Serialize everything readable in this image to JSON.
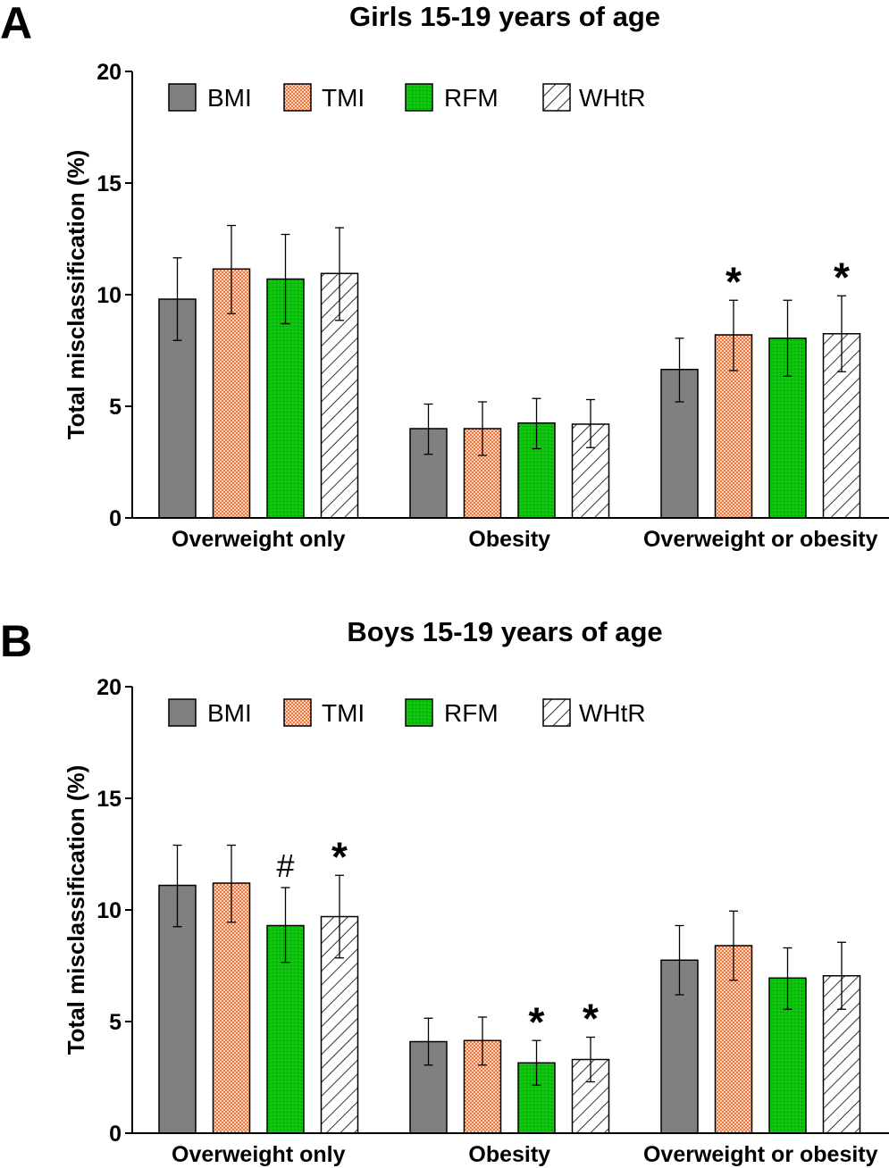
{
  "chart_data": [
    {
      "panel_label": "A",
      "type": "bar",
      "title": "Girls 15-19 years of age",
      "xlabel": "",
      "ylabel": "Total misclassification (%)",
      "ylim": [
        0,
        20
      ],
      "yticks": [
        0,
        5,
        10,
        15,
        20
      ],
      "categories": [
        "Overweight only",
        "Obesity",
        "Overweight or obesity"
      ],
      "legend_position": "top",
      "grid": false,
      "series": [
        {
          "name": "BMI",
          "pattern": "solid-gray",
          "color": "#808080",
          "values": [
            9.8,
            4.0,
            6.65
          ],
          "err_low": [
            7.95,
            2.85,
            5.2
          ],
          "err_high": [
            11.65,
            5.1,
            8.05
          ]
        },
        {
          "name": "TMI",
          "pattern": "orange-checker",
          "color": "#f07840",
          "values": [
            11.15,
            4.0,
            8.2
          ],
          "err_low": [
            9.15,
            2.8,
            6.6
          ],
          "err_high": [
            13.1,
            5.2,
            9.75
          ]
        },
        {
          "name": "RFM",
          "pattern": "green-dots",
          "color": "#11c311",
          "values": [
            10.7,
            4.25,
            8.05
          ],
          "err_low": [
            8.7,
            3.1,
            6.35
          ],
          "err_high": [
            12.7,
            5.35,
            9.75
          ]
        },
        {
          "name": "WHtR",
          "pattern": "diagonal-hatch",
          "color": "#ffffff",
          "values": [
            10.95,
            4.2,
            8.25
          ],
          "err_low": [
            8.85,
            3.15,
            6.55
          ],
          "err_high": [
            13.0,
            5.3,
            9.95
          ]
        }
      ],
      "annotations": [
        {
          "series": 1,
          "category": 2,
          "text": "*"
        },
        {
          "series": 3,
          "category": 2,
          "text": "*"
        }
      ]
    },
    {
      "panel_label": "B",
      "type": "bar",
      "title": "Boys 15-19 years of age",
      "xlabel": "",
      "ylabel": "Total misclassification (%)",
      "ylim": [
        0,
        20
      ],
      "yticks": [
        0,
        5,
        10,
        15,
        20
      ],
      "categories": [
        "Overweight only",
        "Obesity",
        "Overweight or obesity"
      ],
      "legend_position": "top",
      "grid": false,
      "series": [
        {
          "name": "BMI",
          "pattern": "solid-gray",
          "color": "#808080",
          "values": [
            11.1,
            4.1,
            7.75
          ],
          "err_low": [
            9.25,
            3.05,
            6.2
          ],
          "err_high": [
            12.9,
            5.15,
            9.3
          ]
        },
        {
          "name": "TMI",
          "pattern": "orange-checker",
          "color": "#f07840",
          "values": [
            11.2,
            4.15,
            8.4
          ],
          "err_low": [
            9.45,
            3.05,
            6.85
          ],
          "err_high": [
            12.9,
            5.2,
            9.95
          ]
        },
        {
          "name": "RFM",
          "pattern": "green-dots",
          "color": "#11c311",
          "values": [
            9.3,
            3.15,
            6.95
          ],
          "err_low": [
            7.65,
            2.15,
            5.55
          ],
          "err_high": [
            11.0,
            4.15,
            8.3
          ]
        },
        {
          "name": "WHtR",
          "pattern": "diagonal-hatch",
          "color": "#ffffff",
          "values": [
            9.7,
            3.3,
            7.05
          ],
          "err_low": [
            7.85,
            2.3,
            5.55
          ],
          "err_high": [
            11.55,
            4.3,
            8.55
          ]
        }
      ],
      "annotations": [
        {
          "series": 2,
          "category": 0,
          "text": "#"
        },
        {
          "series": 3,
          "category": 0,
          "text": "*"
        },
        {
          "series": 2,
          "category": 1,
          "text": "*"
        },
        {
          "series": 3,
          "category": 1,
          "text": "*"
        }
      ]
    }
  ]
}
